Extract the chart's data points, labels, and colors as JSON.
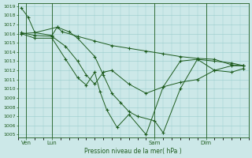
{
  "background_color": "#cce8e8",
  "grid_color": "#99cccc",
  "line_color": "#1e5c1e",
  "marker_color": "#1e5c1e",
  "xlabel": "Pression niveau de la mer( hPa )",
  "ylim": [
    1005,
    1019
  ],
  "yticks": [
    1005,
    1006,
    1007,
    1008,
    1009,
    1010,
    1011,
    1012,
    1013,
    1014,
    1015,
    1016,
    1017,
    1018,
    1019
  ],
  "xtick_labels": [
    "Ven",
    "Lun",
    "Sam",
    "Dim"
  ],
  "xtick_positions": [
    0.5,
    2.0,
    8.0,
    11.0
  ],
  "vline_positions": [
    0.5,
    2.0,
    8.0,
    11.0
  ],
  "xlim": [
    0,
    13.5
  ],
  "series": [
    {
      "x": [
        0.2,
        0.6,
        1.0,
        2.0,
        2.3,
        2.6,
        3.5,
        4.5,
        5.5,
        6.5,
        7.5,
        8.5,
        9.5,
        10.5,
        11.5,
        12.5,
        13.2
      ],
      "y": [
        1018.8,
        1017.8,
        1016.1,
        1015.8,
        1016.7,
        1016.2,
        1015.7,
        1015.2,
        1014.7,
        1014.4,
        1014.1,
        1013.8,
        1013.5,
        1013.3,
        1013.2,
        1012.6,
        1012.5
      ]
    },
    {
      "x": [
        0.2,
        1.0,
        2.0,
        2.8,
        3.5,
        4.0,
        4.5,
        5.0,
        5.5,
        6.5,
        7.5,
        8.5,
        9.5,
        10.5,
        11.5,
        12.5,
        13.2
      ],
      "y": [
        1016.1,
        1015.8,
        1015.7,
        1014.6,
        1013.0,
        1011.5,
        1010.5,
        1011.8,
        1012.0,
        1010.5,
        1009.5,
        1010.2,
        1010.7,
        1011.0,
        1012.0,
        1011.8,
        1012.2
      ]
    },
    {
      "x": [
        0.2,
        1.0,
        2.0,
        2.8,
        3.5,
        4.0,
        4.5,
        4.8,
        5.2,
        5.8,
        6.5,
        7.5,
        8.5,
        9.5,
        10.5,
        11.5,
        12.5,
        13.2
      ],
      "y": [
        1016.0,
        1015.5,
        1015.5,
        1013.2,
        1011.2,
        1010.4,
        1011.8,
        1009.7,
        1007.7,
        1005.8,
        1007.2,
        1005.0,
        1010.2,
        1013.0,
        1013.2,
        1012.0,
        1012.5,
        1012.5
      ]
    },
    {
      "x": [
        0.2,
        1.0,
        2.3,
        3.0,
        3.5,
        4.5,
        5.0,
        5.5,
        6.0,
        6.5,
        7.0,
        8.0,
        8.5,
        9.5,
        10.5,
        11.5,
        12.5,
        13.2
      ],
      "y": [
        1016.0,
        1016.1,
        1016.7,
        1016.2,
        1015.5,
        1013.5,
        1011.5,
        1009.5,
        1008.5,
        1007.5,
        1007.0,
        1006.5,
        1005.2,
        1010.0,
        1013.2,
        1013.0,
        1012.8,
        1012.5
      ]
    }
  ],
  "tick_color": "#1e5c1e",
  "axes_color": "#1e5c1e"
}
